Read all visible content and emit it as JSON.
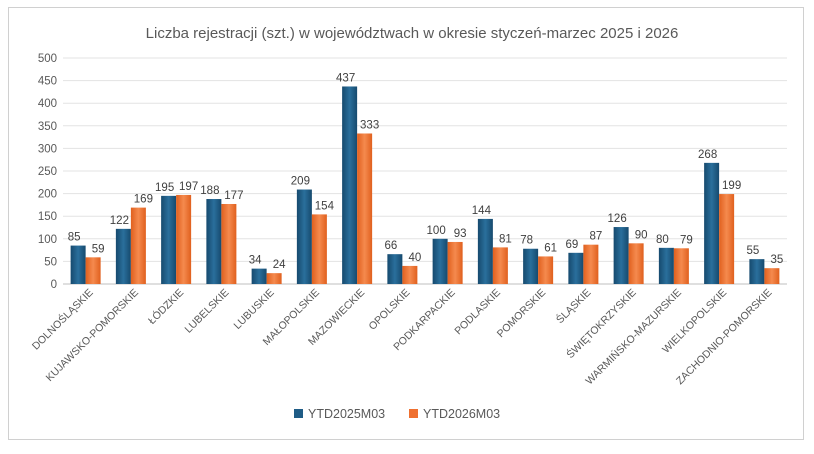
{
  "chart_data": {
    "type": "bar",
    "title": "Liczba rejestracji (szt.) w województwach w okresie styczeń-marzec 2025 i 2026",
    "xlabel": "",
    "ylabel": "",
    "ylim": [
      0,
      500
    ],
    "yticks": [
      0,
      50,
      100,
      150,
      200,
      250,
      300,
      350,
      400,
      450,
      500
    ],
    "grid": true,
    "legend_position": "bottom",
    "categories": [
      "DOLNOŚLĄSKIE",
      "KUJAWSKO-POMORSKIE",
      "ŁÓDZKIE",
      "LUBELSKIE",
      "LUBUSKIE",
      "MAŁOPOLSKIE",
      "MAZOWIECKIE",
      "OPOLSKIE",
      "PODKARPACKIE",
      "PODLASKIE",
      "POMORSKIE",
      "ŚLĄSKIE",
      "ŚWIĘTOKRZYSKIE",
      "WARMIŃSKO-MAZURSKIE",
      "WIELKOPOLSKIE",
      "ZACHODNIO-POMORSKIE"
    ],
    "series": [
      {
        "name": "YTD2025M03",
        "color": "#1f5c86",
        "values": [
          85,
          122,
          195,
          188,
          34,
          209,
          437,
          66,
          100,
          144,
          78,
          69,
          126,
          80,
          268,
          55
        ]
      },
      {
        "name": "YTD2026M03",
        "color": "#ef7030",
        "values": [
          59,
          169,
          197,
          177,
          24,
          154,
          333,
          40,
          93,
          81,
          61,
          87,
          90,
          79,
          199,
          35
        ]
      }
    ]
  }
}
